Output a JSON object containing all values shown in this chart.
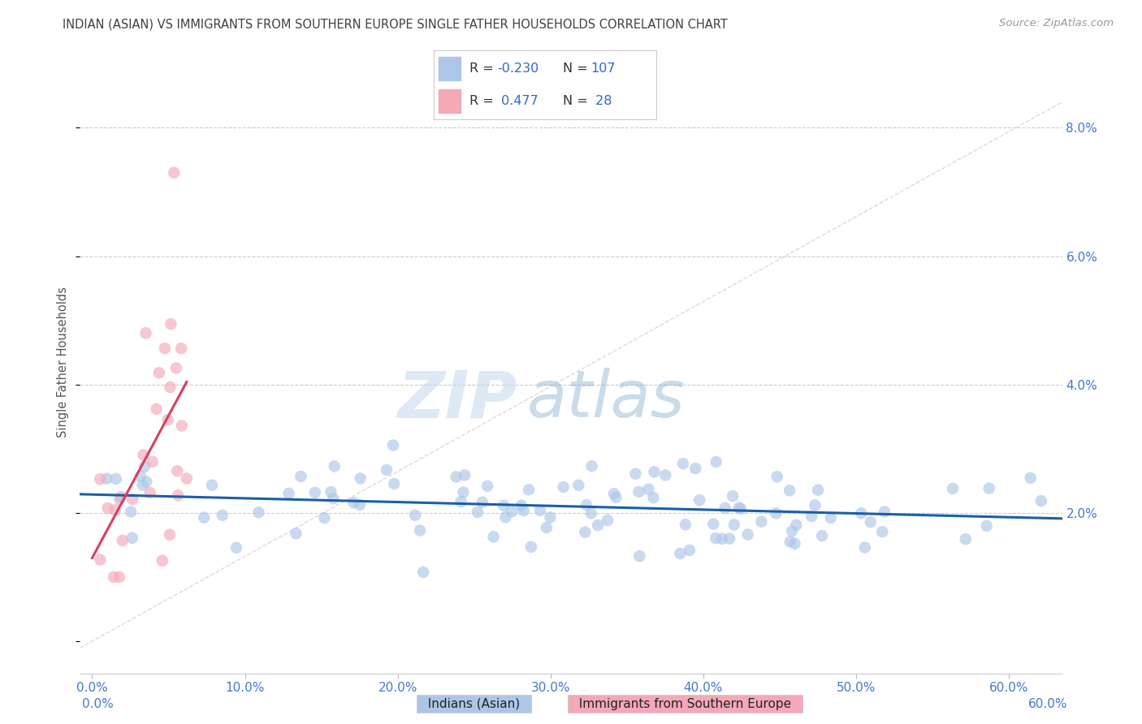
{
  "title": "INDIAN (ASIAN) VS IMMIGRANTS FROM SOUTHERN EUROPE SINGLE FATHER HOUSEHOLDS CORRELATION CHART",
  "source": "Source: ZipAtlas.com",
  "ylabel": "Single Father Households",
  "xlabel_ticks": [
    "0.0%",
    "10.0%",
    "20.0%",
    "30.0%",
    "40.0%",
    "50.0%",
    "60.0%"
  ],
  "xlabel_vals": [
    0.0,
    0.1,
    0.2,
    0.3,
    0.4,
    0.5,
    0.6
  ],
  "ylabel_ticks": [
    "2.0%",
    "4.0%",
    "6.0%",
    "8.0%"
  ],
  "ylabel_vals": [
    0.02,
    0.04,
    0.06,
    0.08
  ],
  "xlim": [
    -0.008,
    0.635
  ],
  "ylim": [
    -0.005,
    0.092
  ],
  "legend_label1": "Indians (Asian)",
  "legend_label2": "Immigrants from Southern Europe",
  "R1": -0.23,
  "N1": 107,
  "R2": 0.477,
  "N2": 28,
  "color_blue": "#adc6e8",
  "color_pink": "#f4a8b8",
  "line_color_blue": "#1a5fa8",
  "line_color_pink": "#d94060",
  "line_color_dashed": "#d8b0b8",
  "watermark_zip": "ZIP",
  "watermark_atlas": "atlas",
  "background_color": "#ffffff",
  "grid_color": "#cccccc",
  "title_color": "#404040",
  "axis_tick_color": "#4477cc",
  "bottom_label_color": "#222222"
}
